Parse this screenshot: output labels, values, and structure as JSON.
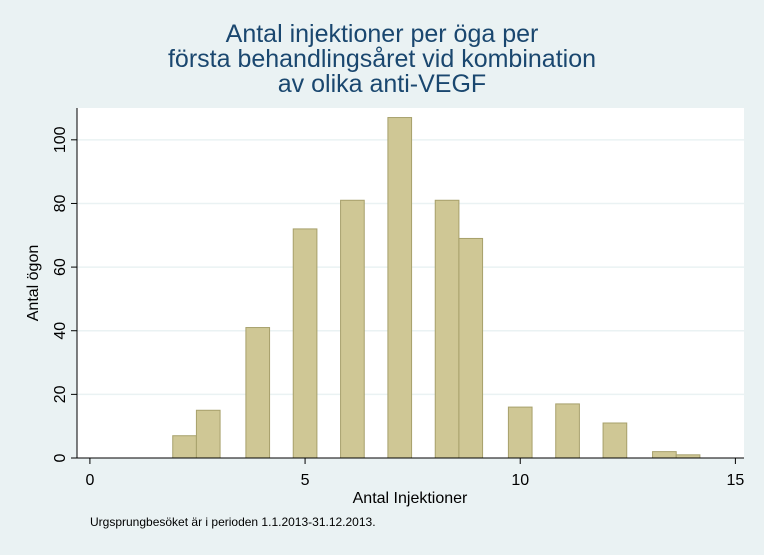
{
  "chart_data": {
    "type": "bar",
    "title_lines": [
      "Antal injektioner per öga per",
      "första behandlingsåret vid kombination",
      "av olika anti-VEGF"
    ],
    "xlabel": "Antal Injektioner",
    "ylabel": "Antal ögon",
    "xlim": [
      -0.3,
      15.2
    ],
    "ylim": [
      0,
      110
    ],
    "xticks": [
      0,
      5,
      10,
      15
    ],
    "yticks": [
      0,
      20,
      40,
      60,
      80,
      100
    ],
    "grid": true,
    "bars": [
      {
        "x": 2.2,
        "value": 7
      },
      {
        "x": 2.75,
        "value": 15
      },
      {
        "x": 3.9,
        "value": 41
      },
      {
        "x": 5.0,
        "value": 72
      },
      {
        "x": 6.1,
        "value": 81
      },
      {
        "x": 7.2,
        "value": 107
      },
      {
        "x": 8.3,
        "value": 81
      },
      {
        "x": 8.85,
        "value": 69
      },
      {
        "x": 10.0,
        "value": 16
      },
      {
        "x": 11.1,
        "value": 17
      },
      {
        "x": 12.2,
        "value": 11
      },
      {
        "x": 13.35,
        "value": 2
      },
      {
        "x": 13.9,
        "value": 1
      }
    ],
    "bar_width": 0.55,
    "bar_color": "#cfc795",
    "bar_edge": "#a7a06b",
    "plot_bg": "#ffffff",
    "grid_color": "#eaf2f3",
    "caption": "Urgsprungbesöket är i perioden 1.1.2013-31.12.2013."
  }
}
